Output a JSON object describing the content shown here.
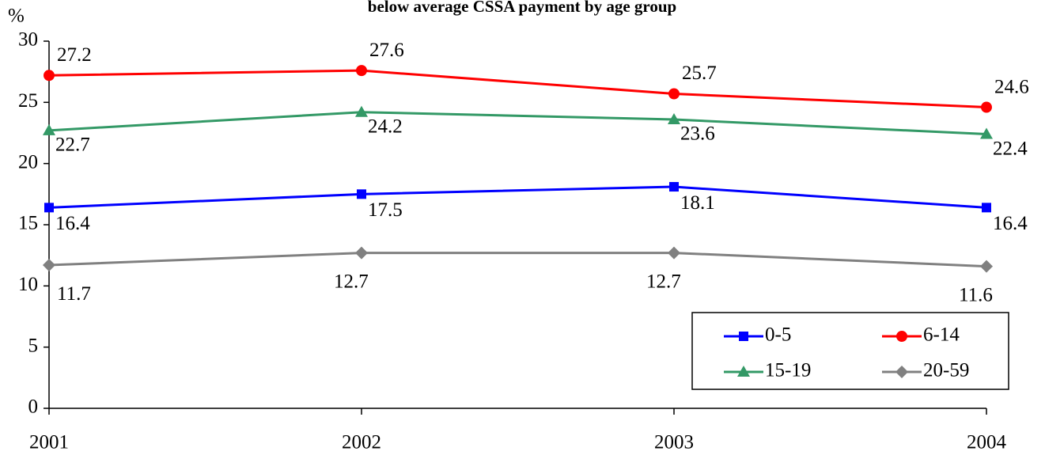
{
  "chart_data": {
    "type": "line",
    "title": "below average CSSA payment by age group",
    "y_label": "%",
    "categories": [
      "2001",
      "2002",
      "2003",
      "2004"
    ],
    "series": [
      {
        "name": "0-5",
        "color": "#0000ff",
        "marker": "square",
        "values": [
          16.4,
          17.5,
          18.1,
          16.4
        ]
      },
      {
        "name": "6-14",
        "color": "#ff0000",
        "marker": "circle",
        "values": [
          27.2,
          27.6,
          25.7,
          24.6
        ]
      },
      {
        "name": "15-19",
        "color": "#339966",
        "marker": "triangle",
        "values": [
          22.7,
          24.2,
          23.6,
          22.4
        ]
      },
      {
        "name": "20-59",
        "color": "#808080",
        "marker": "diamond",
        "values": [
          11.7,
          12.7,
          12.7,
          11.6
        ]
      }
    ],
    "ylim": [
      0,
      30
    ],
    "yticks": [
      0,
      5,
      10,
      15,
      20,
      25,
      30
    ],
    "grid": false
  }
}
